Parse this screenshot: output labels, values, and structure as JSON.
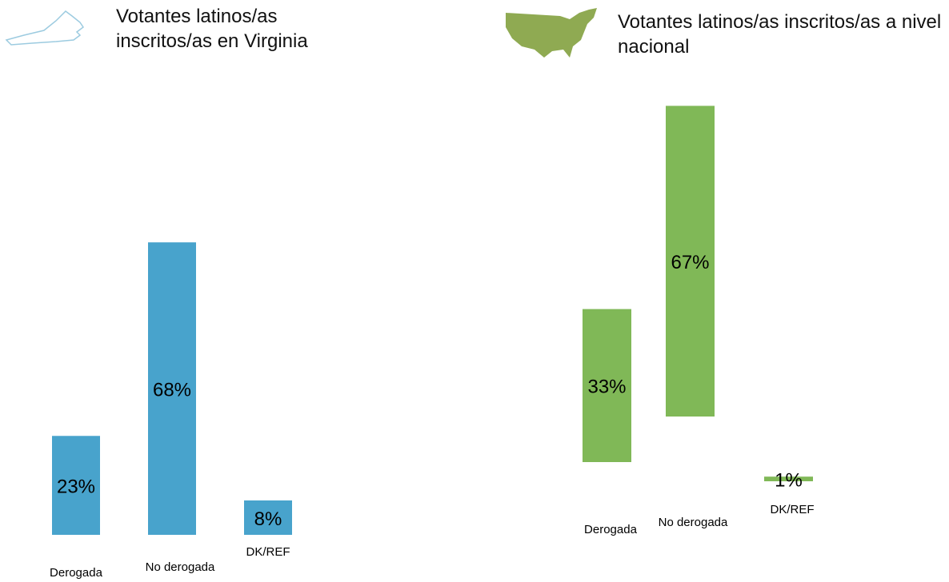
{
  "chart_data": [
    {
      "type": "bar",
      "title": "Votantes latinos/as inscritos/as en Virginia",
      "categories": [
        "Derogada",
        "No derogada",
        "DK/REF"
      ],
      "values": [
        23,
        68,
        8
      ],
      "value_labels": [
        "23%",
        "68%",
        "8%"
      ],
      "color": "#48a3cc"
    },
    {
      "type": "bar",
      "title": "Votantes latinos/as inscritos/as a nivel nacional",
      "categories": [
        "Derogada",
        "No derogada",
        "DK/REF"
      ],
      "values": [
        33,
        67,
        1
      ],
      "value_labels": [
        "33%",
        "67%",
        "1%"
      ],
      "color": "#80b857"
    }
  ]
}
